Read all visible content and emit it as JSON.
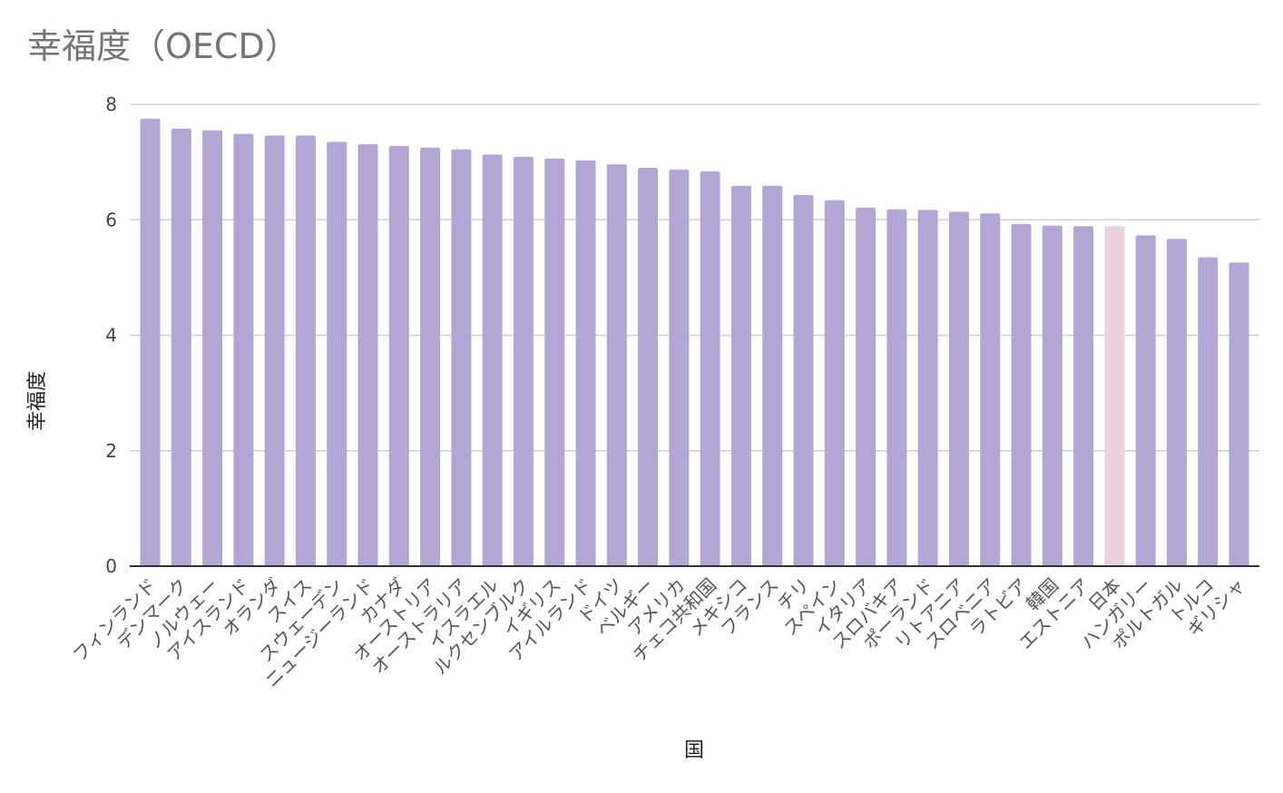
{
  "chart_data": {
    "type": "bar",
    "title": "幸福度（OECD）",
    "xlabel": "国",
    "ylabel": "幸福度",
    "ylim": [
      0,
      8
    ],
    "yticks": [
      0,
      2,
      4,
      6,
      8
    ],
    "grid": true,
    "legend": "none",
    "colors": {
      "default": "#b3a6d7",
      "highlight": "#e9d1de",
      "grid": "#cfcfcf",
      "baseline": "#333333",
      "title": "#757575"
    },
    "highlight_category": "日本",
    "categories": [
      "フィンランド",
      "デンマーク",
      "ノルウェー",
      "アイスランド",
      "オランダ",
      "スイス",
      "スウェーデン",
      "ニュージーランド",
      "カナダ",
      "オーストリア",
      "オーストラリア",
      "イスラエル",
      "ルクセンブルク",
      "イギリス",
      "アイルランド",
      "ドイツ",
      "ベルギー",
      "アメリカ",
      "チェコ共和国",
      "メキシコ",
      "フランス",
      "チリ",
      "スペイン",
      "イタリア",
      "スロバキア",
      "ポーランド",
      "リトアニア",
      "スロベニア",
      "ラトビア",
      "韓国",
      "エストニア",
      "日本",
      "ハンガリー",
      "ポルトガル",
      "トルコ",
      "ギリシャ"
    ],
    "values": [
      7.75,
      7.58,
      7.55,
      7.49,
      7.46,
      7.46,
      7.35,
      7.31,
      7.28,
      7.25,
      7.22,
      7.13,
      7.09,
      7.06,
      7.03,
      6.96,
      6.9,
      6.87,
      6.84,
      6.59,
      6.59,
      6.43,
      6.34,
      6.21,
      6.18,
      6.17,
      6.14,
      6.11,
      5.93,
      5.9,
      5.89,
      5.89,
      5.73,
      5.67,
      5.35,
      5.26
    ]
  }
}
